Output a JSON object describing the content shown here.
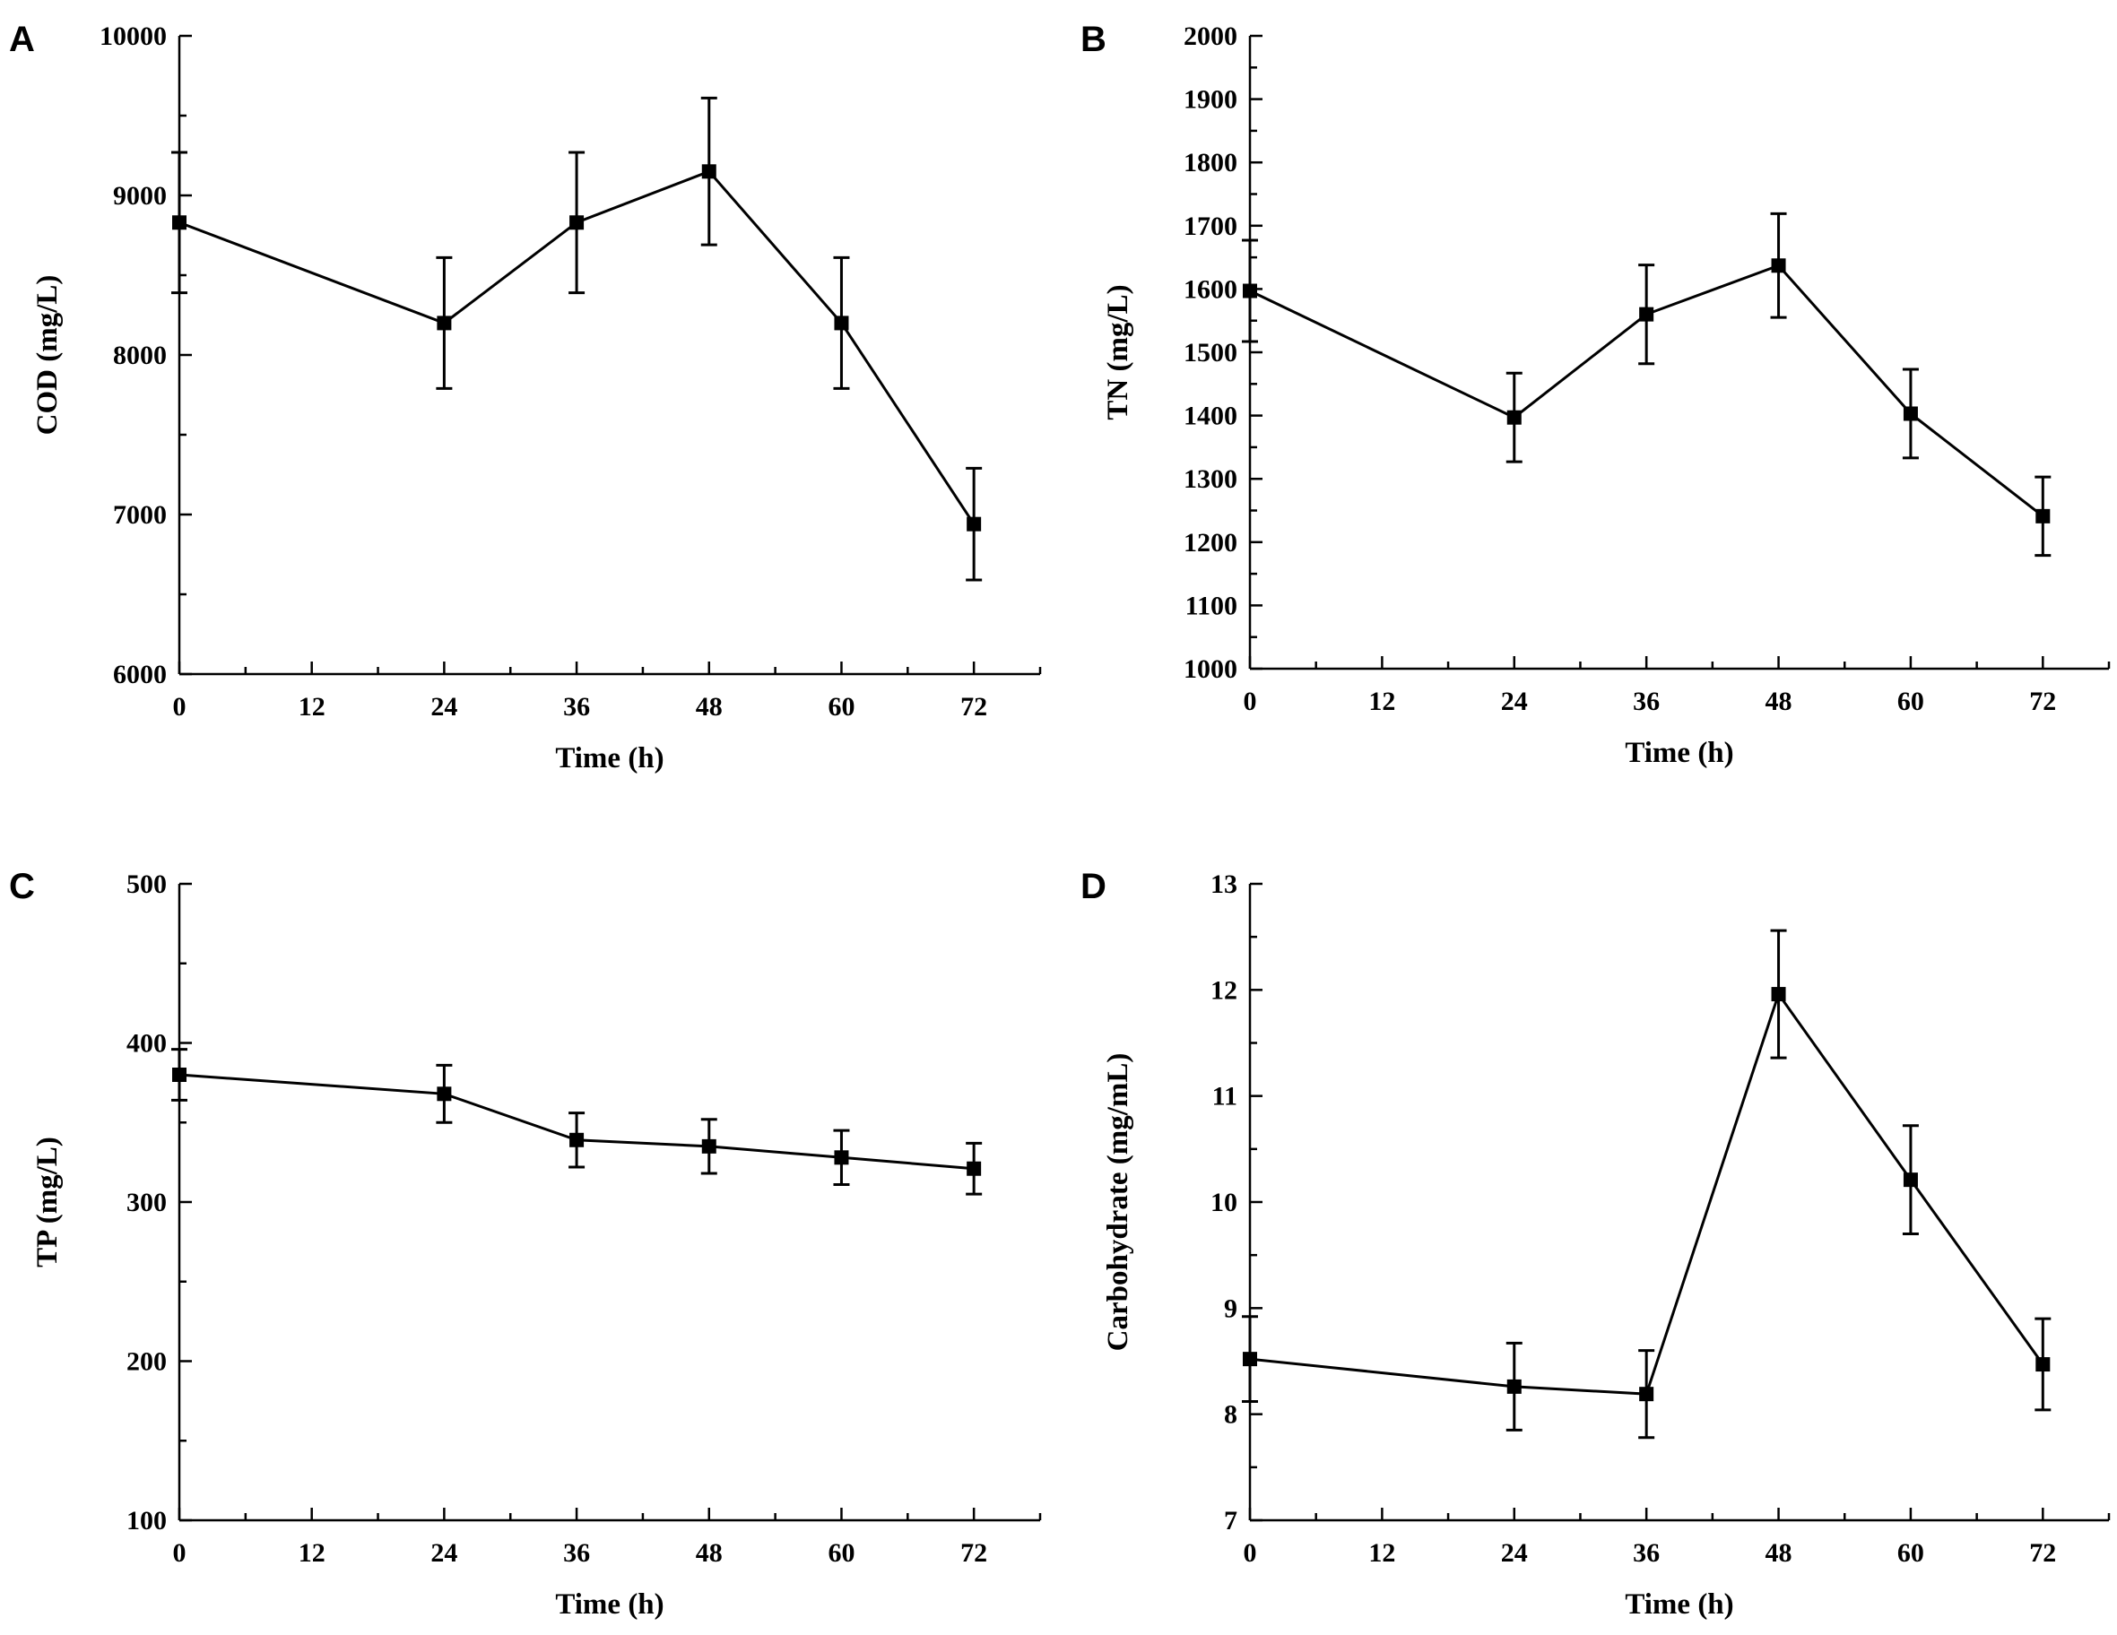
{
  "chart_data": [
    {
      "panel": "A",
      "type": "line",
      "xlabel": "Time (h)",
      "ylabel": "COD (mg/L)",
      "xlim": [
        0,
        78
      ],
      "ylim": [
        6000,
        10000
      ],
      "xticks": [
        0,
        12,
        24,
        36,
        48,
        60,
        72
      ],
      "yticks": [
        6000,
        7000,
        8000,
        9000,
        10000
      ],
      "x": [
        0,
        24,
        36,
        48,
        60,
        72
      ],
      "y": [
        8830,
        8200,
        8830,
        9150,
        8200,
        6940
      ],
      "err": [
        440,
        410,
        440,
        460,
        410,
        350
      ]
    },
    {
      "panel": "B",
      "type": "line",
      "xlabel": "Time (h)",
      "ylabel": "TN (mg/L)",
      "xlim": [
        0,
        78
      ],
      "ylim": [
        1000,
        2000
      ],
      "xticks": [
        0,
        12,
        24,
        36,
        48,
        60,
        72
      ],
      "yticks": [
        1000,
        1100,
        1200,
        1300,
        1400,
        1500,
        1600,
        1700,
        1800,
        1900,
        2000
      ],
      "x": [
        0,
        24,
        36,
        48,
        60,
        72
      ],
      "y": [
        1597,
        1397,
        1560,
        1637,
        1403,
        1241
      ],
      "err": [
        80,
        70,
        78,
        82,
        70,
        62
      ]
    },
    {
      "panel": "C",
      "type": "line",
      "xlabel": "Time (h)",
      "ylabel": "TP (mg/L)",
      "xlim": [
        0,
        78
      ],
      "ylim": [
        100,
        500
      ],
      "xticks": [
        0,
        12,
        24,
        36,
        48,
        60,
        72
      ],
      "yticks": [
        100,
        200,
        300,
        400,
        500
      ],
      "x": [
        0,
        24,
        36,
        48,
        60,
        72
      ],
      "y": [
        380,
        368,
        339,
        335,
        328,
        321
      ],
      "err": [
        16,
        18,
        17,
        17,
        17,
        16
      ]
    },
    {
      "panel": "D",
      "type": "line",
      "xlabel": "Time (h)",
      "ylabel": "Carbohydrate (mg/mL)",
      "xlim": [
        0,
        78
      ],
      "ylim": [
        7,
        13
      ],
      "xticks": [
        0,
        12,
        24,
        36,
        48,
        60,
        72
      ],
      "yticks": [
        7,
        8,
        9,
        10,
        11,
        12,
        13
      ],
      "x": [
        0,
        24,
        36,
        48,
        60,
        72
      ],
      "y": [
        8.52,
        8.26,
        8.19,
        11.96,
        10.21,
        8.47
      ],
      "err": [
        0.4,
        0.41,
        0.41,
        0.6,
        0.51,
        0.43
      ]
    }
  ]
}
